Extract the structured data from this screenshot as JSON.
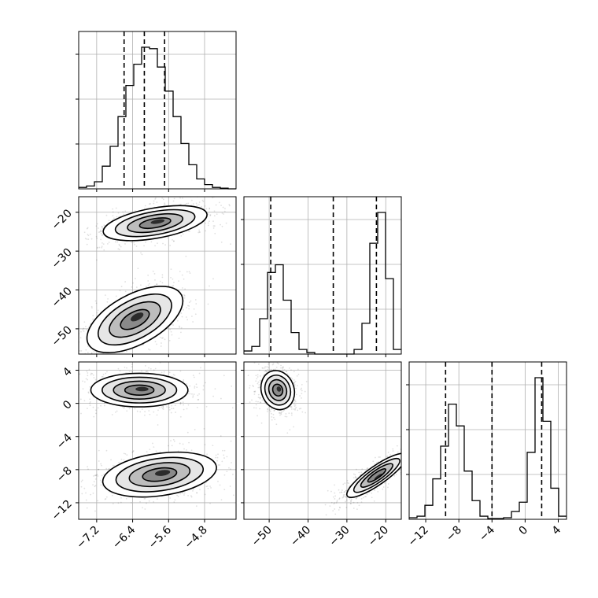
{
  "chart_data": {
    "type": "corner",
    "grid": true,
    "parameters": [
      {
        "range": [
          -7.6,
          -4.1
        ],
        "ticks": [
          -7.2,
          -6.4,
          -5.6,
          -4.8
        ],
        "tick_labels": [
          "−7.2",
          "−6.4",
          "−5.6",
          "−4.8"
        ]
      },
      {
        "range": [
          -56.5,
          -16
        ],
        "ticks": [
          -50,
          -40,
          -30,
          -20
        ],
        "tick_labels": [
          "−50",
          "−40",
          "−30",
          "−20"
        ]
      },
      {
        "range": [
          -14,
          5
        ],
        "ticks": [
          -12,
          -8,
          -4,
          0,
          4
        ],
        "tick_labels": [
          "−12",
          "−8",
          "−4",
          "0",
          "4"
        ]
      }
    ],
    "histograms": [
      {
        "parameter": 0,
        "bin_edges": [
          -7.6,
          -7.425,
          -7.25,
          -7.075,
          -6.9,
          -6.725,
          -6.55,
          -6.375,
          -6.2,
          -6.025,
          -5.85,
          -5.675,
          -5.5,
          -5.325,
          -5.15,
          -4.975,
          -4.8,
          -4.625,
          -4.45,
          -4.275,
          -4.1
        ],
        "counts": [
          0.01,
          0.02,
          0.05,
          0.16,
          0.3,
          0.51,
          0.73,
          0.88,
          1.0,
          0.99,
          0.86,
          0.69,
          0.51,
          0.32,
          0.17,
          0.07,
          0.03,
          0.01,
          0.005,
          0
        ],
        "quantiles": [
          -6.59,
          -6.14,
          -5.69
        ]
      },
      {
        "parameter": 1,
        "bin_edges": [
          -56.5,
          -54.475,
          -52.45,
          -50.425,
          -48.4,
          -46.375,
          -44.35,
          -42.325,
          -40.3,
          -38.275,
          -36.25,
          -34.225,
          -32.2,
          -30.175,
          -28.15,
          -26.125,
          -24.1,
          -22.075,
          -20.05,
          -18.025,
          -16
        ],
        "counts": [
          0.02,
          0.05,
          0.23,
          0.53,
          0.58,
          0.35,
          0.14,
          0.03,
          0.01,
          0,
          0,
          0,
          0,
          0,
          0.03,
          0.2,
          0.72,
          0.92,
          0.49,
          0.03
        ],
        "quantiles": [
          -49.6,
          -33.5,
          -22.4
        ]
      },
      {
        "parameter": 2,
        "bin_edges": [
          -14,
          -13.05,
          -12.1,
          -11.15,
          -10.2,
          -9.25,
          -8.3,
          -7.35,
          -6.4,
          -5.45,
          -4.5,
          -3.55,
          -2.6,
          -1.65,
          -0.7,
          0.25,
          1.2,
          2.15,
          3.1,
          4.05,
          5
        ],
        "counts": [
          0.01,
          0.02,
          0.09,
          0.26,
          0.47,
          0.74,
          0.6,
          0.31,
          0.12,
          0.02,
          0.005,
          0.005,
          0.01,
          0.05,
          0.11,
          0.43,
          0.91,
          0.63,
          0.2,
          0.02
        ],
        "quantiles": [
          -9.6,
          -4.0,
          2.0
        ]
      }
    ],
    "joint_panels": [
      {
        "x_param": 0,
        "y_param": 1,
        "modes": [
          {
            "center": [
              -5.9,
              -22.8
            ],
            "rx": 0.78,
            "ry": 2.6,
            "angle": -10
          },
          {
            "center": [
              -6.35,
              -47.6
            ],
            "rx": 0.78,
            "ry": 4.3,
            "angle": -28
          }
        ]
      },
      {
        "x_param": 0,
        "y_param": 2,
        "modes": [
          {
            "center": [
              -6.25,
              1.6
            ],
            "rx": 0.72,
            "ry": 1.35,
            "angle": 0
          },
          {
            "center": [
              -5.8,
              -8.6
            ],
            "rx": 0.85,
            "ry": 1.7,
            "angle": -8
          }
        ]
      },
      {
        "x_param": 1,
        "y_param": 2,
        "modes": [
          {
            "center": [
              -47.8,
              1.6
            ],
            "rx": 2.8,
            "ry": 1.6,
            "angle": -20
          },
          {
            "center": [
              -22.3,
              -8.7
            ],
            "rx": 1.6,
            "ry": 2.9,
            "angle": 55
          }
        ]
      }
    ]
  }
}
